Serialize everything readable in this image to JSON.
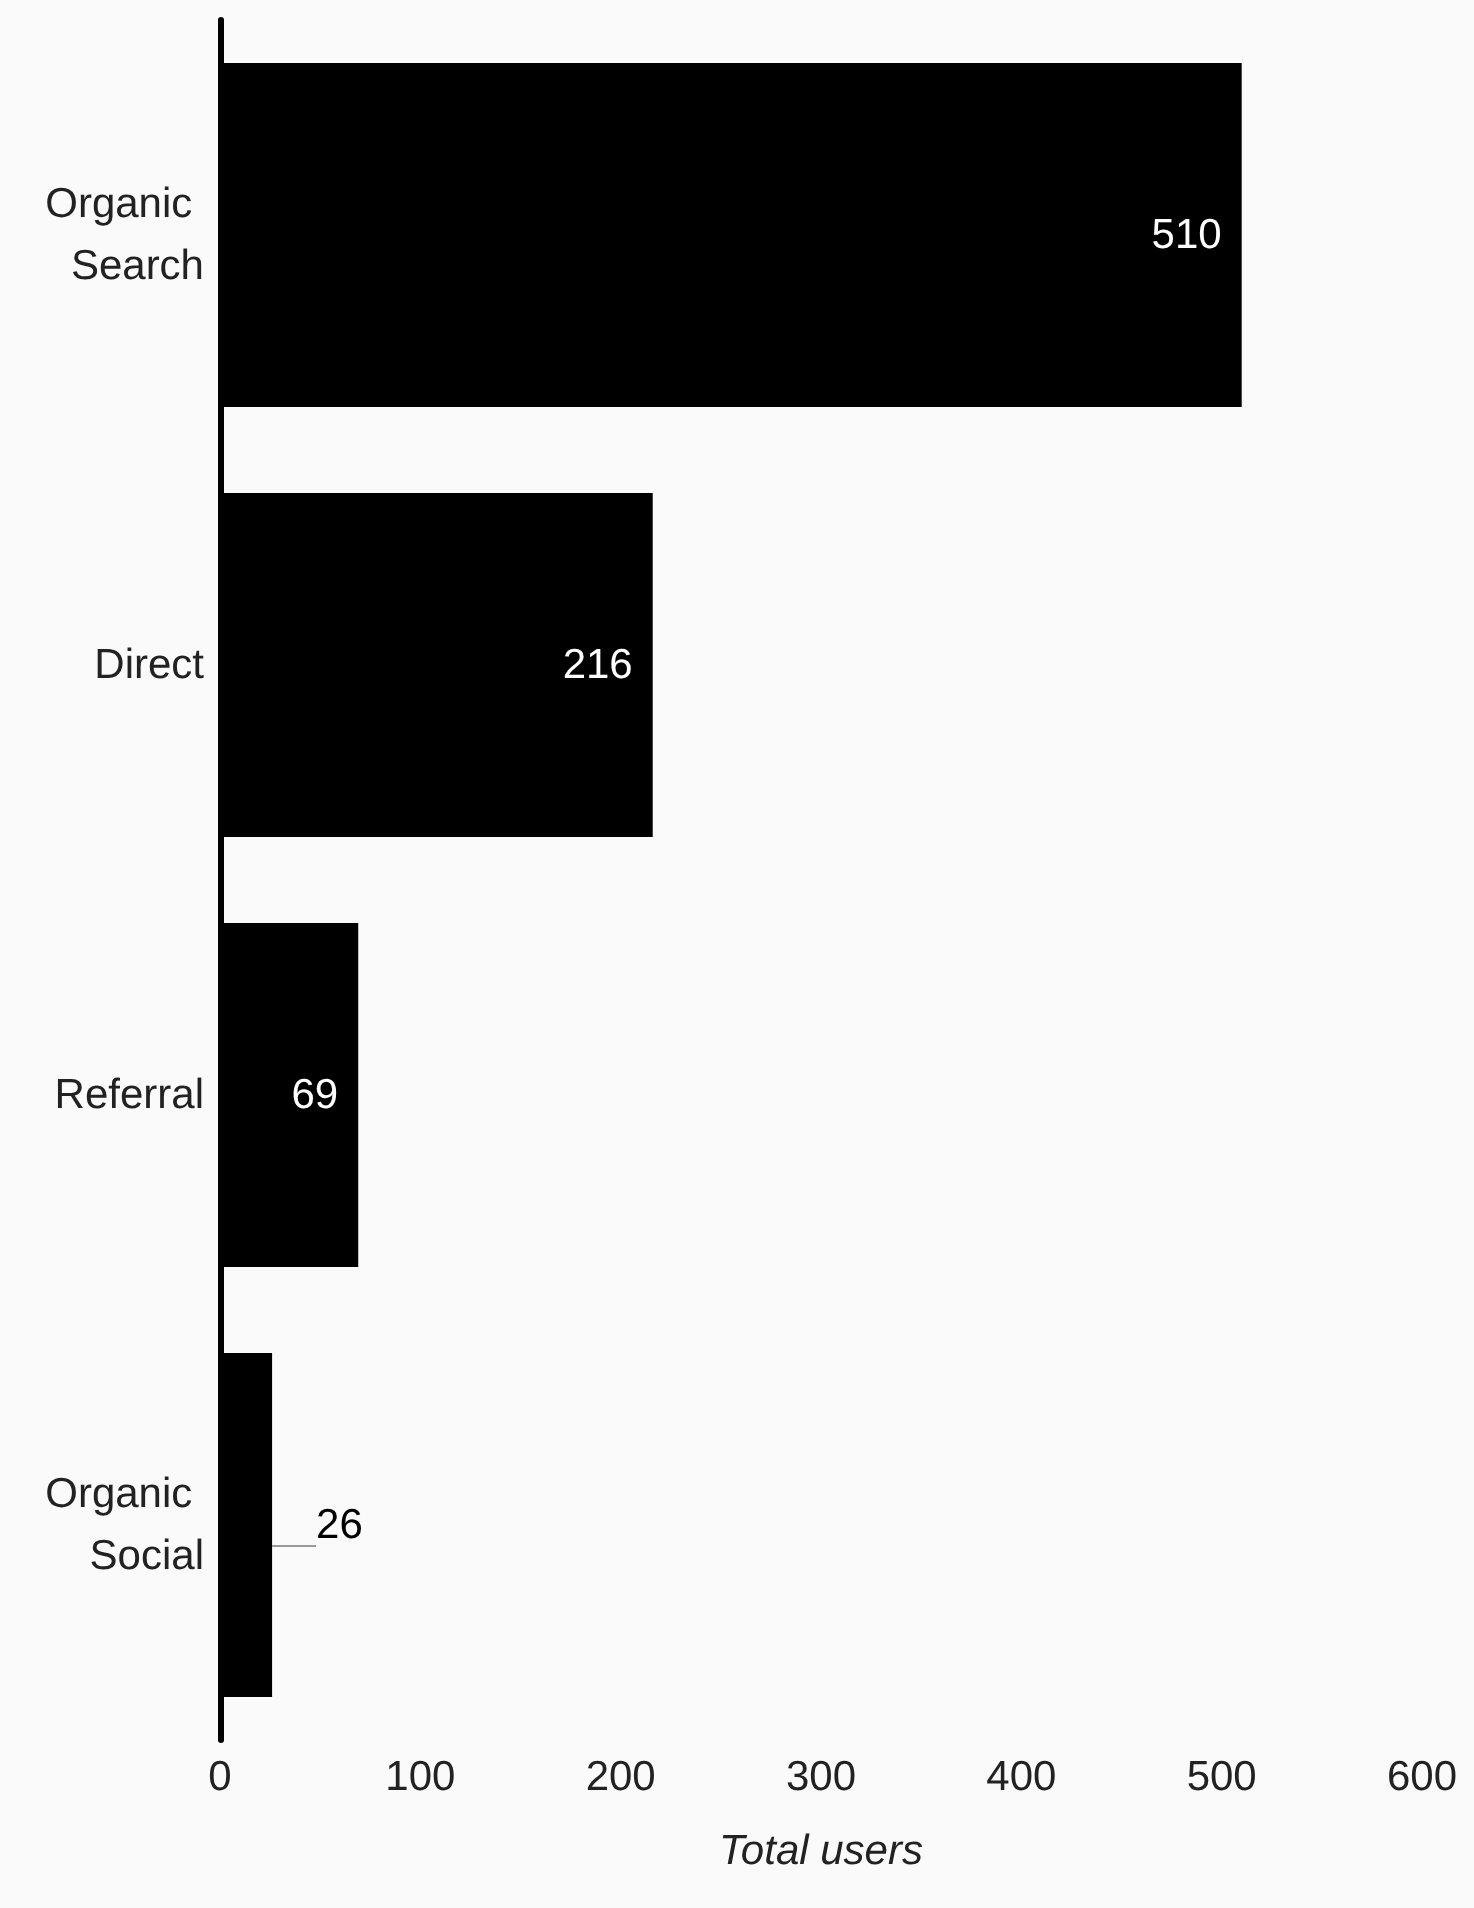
{
  "chart_data": {
    "type": "bar",
    "orientation": "horizontal",
    "categories": [
      "Organic Search",
      "Direct",
      "Referral",
      "Organic Social"
    ],
    "values": [
      510,
      216,
      69,
      26
    ],
    "color": "#000000",
    "xlabel": "Total users",
    "xlim": [
      0,
      600
    ],
    "xticks": [
      0,
      100,
      200,
      300,
      400,
      500,
      600
    ],
    "data_labels": true
  }
}
